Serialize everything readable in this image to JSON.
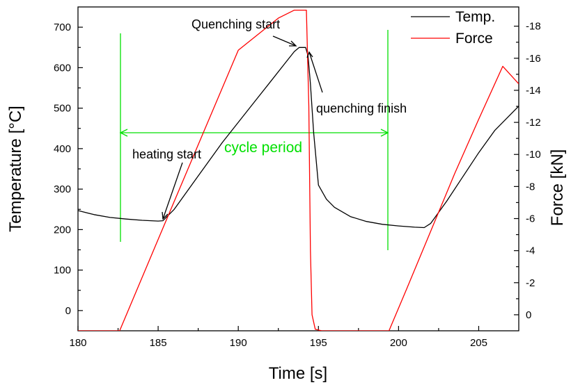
{
  "chart_data": {
    "type": "line",
    "xlabel": "Time [s]",
    "ylabel_left": "Temperature [°C]",
    "ylabel_right": "Force [kN]",
    "xlim": [
      180,
      207.5
    ],
    "ylim_left": [
      -50,
      750
    ],
    "ylim_right": [
      1,
      -19.2
    ],
    "x_ticks": [
      180,
      185,
      190,
      195,
      200,
      205
    ],
    "x_tick_labels": [
      "180",
      "185",
      "190",
      "195",
      "200",
      "205"
    ],
    "y_left_ticks": [
      0,
      100,
      200,
      300,
      400,
      500,
      600,
      700
    ],
    "y_left_tick_labels": [
      "0",
      "100",
      "200",
      "300",
      "400",
      "500",
      "600",
      "700"
    ],
    "y_right_ticks": [
      0,
      -2,
      -4,
      -6,
      -8,
      -10,
      -12,
      -14,
      -16,
      -18
    ],
    "y_right_tick_labels": [
      "0",
      "-2",
      "-4",
      "-6",
      "-8",
      "-10",
      "-12",
      "-14",
      "-16",
      "-18"
    ],
    "legend_position": "top-right",
    "grid": false,
    "series": [
      {
        "name": "Temp.",
        "color": "#000000",
        "axis": "left",
        "x": [
          180,
          181,
          182,
          183,
          184,
          185,
          185.3,
          186,
          187,
          188,
          189,
          190,
          191,
          192,
          193,
          193.5,
          193.8,
          194.2,
          194.35,
          194.5,
          194.7,
          195,
          195.5,
          196,
          197,
          198,
          199,
          200,
          201,
          201.6,
          202,
          203,
          204,
          205,
          206,
          207.5
        ],
        "y": [
          247,
          237,
          230,
          226,
          223,
          221,
          222,
          250,
          305,
          360,
          415,
          465,
          515,
          565,
          615,
          640,
          650,
          650,
          630,
          560,
          440,
          310,
          275,
          255,
          232,
          220,
          213,
          209,
          206,
          205,
          215,
          270,
          330,
          390,
          445,
          505
        ]
      },
      {
        "name": "Force",
        "color": "#ff0000",
        "axis": "right",
        "x": [
          180,
          182.6,
          185,
          187.5,
          190,
          192.5,
          193.5,
          193.85,
          194.25,
          194.4,
          194.5,
          194.6,
          194.8,
          195.2,
          196,
          197,
          198,
          199.4,
          200.5,
          202,
          203.5,
          205,
          206.5,
          207.5
        ],
        "y": [
          1,
          1,
          -4.7,
          -10.6,
          -16.5,
          -18.5,
          -19,
          -19,
          -19,
          -13,
          -4,
          0,
          0.9,
          1,
          1,
          1,
          1,
          1,
          -1.6,
          -5.2,
          -8.8,
          -12.2,
          -15.5,
          -14.4
        ]
      }
    ],
    "annotations": {
      "quench_start": "Quenching start",
      "quench_finish": "quenching finish",
      "heating_start": "heating start",
      "cycle_period": "cycle period"
    }
  }
}
